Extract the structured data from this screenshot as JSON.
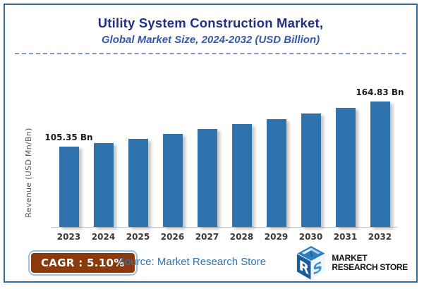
{
  "header": {
    "title": "Utility System Construction Market,",
    "subtitle": "Global Market Size, 2024-2032 (USD Billion)"
  },
  "chart_data": {
    "type": "bar",
    "title": "Utility System Construction Market,",
    "subtitle": "Global Market Size, 2024-2032 (USD Billion)",
    "xlabel": "",
    "ylabel": "Revenue (USD Mn/Bn)",
    "categories": [
      "2023",
      "2024",
      "2025",
      "2026",
      "2027",
      "2028",
      "2029",
      "2030",
      "2031",
      "2032"
    ],
    "values": [
      105.35,
      110.72,
      116.37,
      122.3,
      128.54,
      135.1,
      141.99,
      149.23,
      156.84,
      164.83
    ],
    "value_unit": "USD Bn",
    "data_labels": {
      "2023": "105.35 Bn",
      "2032": "164.83 Bn"
    },
    "ylim": [
      0,
      175
    ],
    "grid": false,
    "legend": false,
    "bar_color": "#2e73ae"
  },
  "footer": {
    "cagr_text": "CAGR : 5.10%",
    "cagr_bg_color": "#8a3a0e",
    "cagr_border_color": "#9cc2e5",
    "source_text": "Source: Market Research Store",
    "source_color": "#2e74b5",
    "logo": {
      "cube_letter_r": "R",
      "cube_letter_s": "S",
      "line1": "MARKET",
      "line2": "RESEARCH STORE"
    }
  },
  "colors": {
    "frame_border": "#36699b",
    "title": "#222f86",
    "subtitle": "#3558a8",
    "divider_dashes": "#7d99cf",
    "bar": "#2e73ae",
    "axis_line": "#c9c9c9",
    "data_label": "#1c1c1c",
    "year_label": "#3a3a3a",
    "y_axis_label": "#595959"
  }
}
